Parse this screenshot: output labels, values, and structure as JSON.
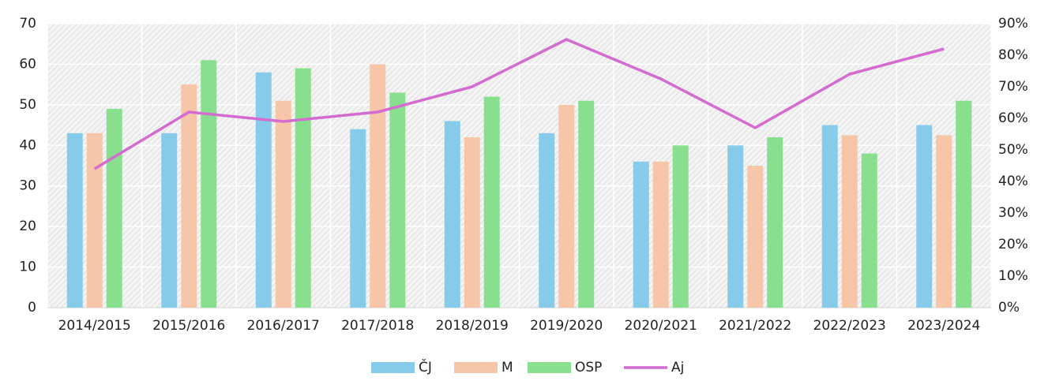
{
  "chart_data": {
    "type": "bar",
    "categories": [
      "2014/2015",
      "2015/2016",
      "2016/2017",
      "2017/2018",
      "2018/2019",
      "2019/2020",
      "2020/2021",
      "2021/2022",
      "2022/2023",
      "2023/2024"
    ],
    "series": [
      {
        "name": "ČJ",
        "color": "#87cbea",
        "values": [
          43,
          43,
          58,
          44,
          46,
          43,
          36,
          40,
          45,
          45
        ]
      },
      {
        "name": "M",
        "color": "#f7c6a8",
        "values": [
          43,
          55,
          51,
          60,
          42,
          50,
          36,
          35,
          42.5,
          42.5
        ]
      },
      {
        "name": "OSP",
        "color": "#88e08f",
        "values": [
          49,
          61,
          59,
          53,
          52,
          51,
          40,
          42,
          38,
          51
        ]
      },
      {
        "name": "Aj",
        "color": "#d46bd0",
        "axis": "y2",
        "type": "line",
        "values": [
          44,
          62,
          59,
          62,
          70,
          85,
          72.5,
          57,
          74,
          82
        ]
      }
    ],
    "ylim": [
      0,
      70
    ],
    "yticks": [
      0,
      10,
      20,
      30,
      40,
      50,
      60,
      70
    ],
    "y2lim": [
      0,
      90
    ],
    "y2ticks": [
      {
        "value": 0,
        "label": "0%"
      },
      {
        "value": 10,
        "label": "10%"
      },
      {
        "value": 20,
        "label": "20%"
      },
      {
        "value": 30,
        "label": "30%"
      },
      {
        "value": 40,
        "label": "40%"
      },
      {
        "value": 50,
        "label": "50%"
      },
      {
        "value": 60,
        "label": "60%"
      },
      {
        "value": 70,
        "label": "70%"
      },
      {
        "value": 80,
        "label": "80%"
      },
      {
        "value": 90,
        "label": "90%"
      }
    ],
    "grid": true,
    "legend": "bottom"
  }
}
